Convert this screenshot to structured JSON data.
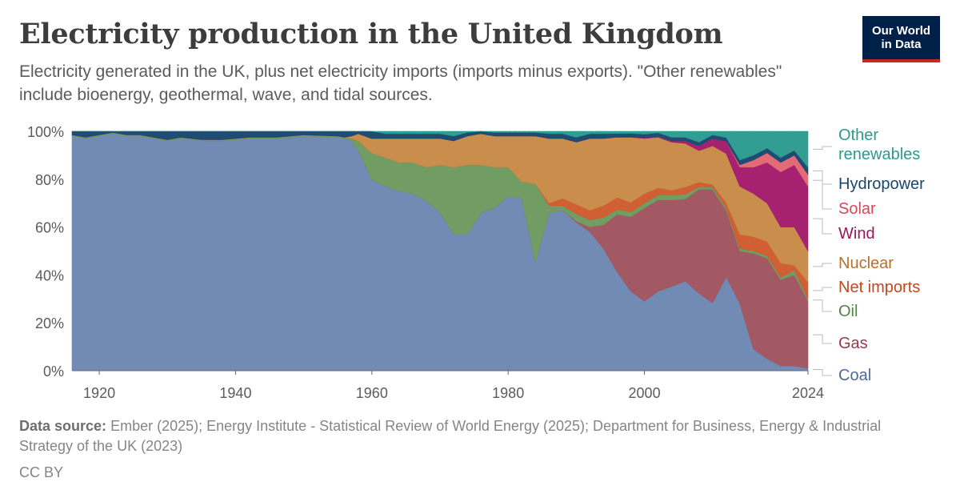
{
  "title": "Electricity production in the United Kingdom",
  "subtitle": "Electricity generated in the UK, plus net electricity imports (imports minus exports). \"Other renewables\" include bioenergy, geothermal, wave, and tidal sources.",
  "logo": {
    "line1": "Our World",
    "line2": "in Data"
  },
  "footer": {
    "source_label": "Data source:",
    "source_text": "Ember (2025); Energy Institute - Statistical Review of World Energy (2025); Department for Business, Energy & Industrial Strategy of the UK (2023)",
    "license": "CC BY"
  },
  "chart_data": {
    "type": "area",
    "stacked": true,
    "normalized": true,
    "xlim": [
      1916,
      2024
    ],
    "ylim": [
      0,
      100
    ],
    "x_ticks": [
      1920,
      1940,
      1960,
      1980,
      2000,
      2024
    ],
    "y_ticks": [
      0,
      20,
      40,
      60,
      80,
      100
    ],
    "y_tick_labels": [
      "0%",
      "20%",
      "40%",
      "60%",
      "80%",
      "100%"
    ],
    "grid": "horizontal dashed",
    "legend_placement": "right",
    "x": [
      1916,
      1918,
      1920,
      1922,
      1924,
      1926,
      1928,
      1930,
      1932,
      1935,
      1938,
      1942,
      1946,
      1950,
      1955,
      1956,
      1957,
      1958,
      1960,
      1962,
      1964,
      1966,
      1968,
      1970,
      1972,
      1974,
      1976,
      1978,
      1980,
      1982,
      1984,
      1986,
      1988,
      1990,
      1992,
      1994,
      1996,
      1998,
      2000,
      2002,
      2004,
      2006,
      2008,
      2010,
      2012,
      2014,
      2016,
      2018,
      2020,
      2022,
      2024
    ],
    "series": [
      {
        "name": "Coal",
        "color": "#6d87b2",
        "values": [
          98,
          97,
          98,
          99,
          98,
          98,
          97,
          96,
          97,
          96,
          96,
          97,
          97,
          98,
          97.5,
          97,
          96,
          92,
          79,
          77,
          75,
          74,
          71,
          66,
          57,
          57,
          66,
          68,
          73,
          72,
          45,
          66,
          67,
          62,
          58,
          51,
          41,
          33,
          29,
          33,
          35,
          37,
          32,
          28,
          38,
          28,
          9,
          5,
          2,
          2,
          1
        ]
      },
      {
        "name": "Gas",
        "color": "#a0545f",
        "values": [
          0,
          0,
          0,
          0,
          0,
          0,
          0,
          0,
          0,
          0,
          0,
          0,
          0,
          0,
          0,
          0,
          0,
          0,
          0,
          0,
          0,
          0,
          0,
          0,
          0,
          0,
          0,
          0,
          0,
          0,
          0,
          0,
          0,
          0.5,
          2,
          10,
          24,
          31,
          39,
          38,
          36,
          34,
          43,
          47,
          27,
          22,
          40,
          42,
          36,
          38,
          28
        ]
      },
      {
        "name": "Oil",
        "color": "#6c9a5f",
        "values": [
          0.5,
          0.5,
          0.5,
          0.5,
          0.5,
          0.5,
          0.5,
          0.5,
          0.5,
          0.5,
          0.5,
          0.5,
          0.5,
          0.5,
          0.5,
          0.5,
          1,
          4,
          11,
          12,
          12,
          13,
          14,
          20,
          28,
          29,
          20,
          17,
          12,
          7,
          33,
          3,
          2,
          3,
          3,
          3,
          2,
          2,
          2,
          2,
          2,
          2,
          1,
          1,
          1,
          1,
          1,
          1,
          1,
          2,
          1
        ]
      },
      {
        "name": "Net imports",
        "color": "#ce5a2c",
        "values": [
          0,
          0,
          0,
          0,
          0,
          0,
          0,
          0,
          0,
          0,
          0,
          0,
          0,
          0,
          0,
          0,
          0,
          0,
          0,
          0,
          0,
          0,
          0,
          0,
          0,
          0,
          0,
          0,
          0,
          0,
          0,
          1,
          3,
          4,
          4,
          5,
          5,
          4,
          4,
          3,
          2,
          3,
          2,
          1,
          2,
          6,
          6,
          6,
          6,
          2,
          7
        ]
      },
      {
        "name": "Nuclear",
        "color": "#c78a46",
        "values": [
          0,
          0,
          0,
          0,
          0,
          0,
          0,
          0,
          0,
          0,
          0,
          0,
          0,
          0,
          0,
          0,
          1,
          3,
          6,
          8,
          10,
          10,
          12,
          11,
          11,
          12,
          13,
          13,
          13,
          19,
          20,
          27,
          25,
          26,
          30,
          28,
          25,
          27,
          23,
          21,
          20,
          18,
          13,
          16,
          20,
          20,
          18,
          16,
          15,
          16,
          13
        ]
      },
      {
        "name": "Wind",
        "color": "#a31a6b",
        "values": [
          0,
          0,
          0,
          0,
          0,
          0,
          0,
          0,
          0,
          0,
          0,
          0,
          0,
          0,
          0,
          0,
          0,
          0,
          0,
          0,
          0,
          0,
          0,
          0,
          0,
          0,
          0,
          0,
          0,
          0,
          0,
          0,
          0,
          0,
          0,
          0,
          0.1,
          0.2,
          0.3,
          0.4,
          0.5,
          1,
          2,
          3,
          5,
          8,
          11,
          17,
          23,
          26,
          27
        ]
      },
      {
        "name": "Solar",
        "color": "#e26674",
        "values": [
          0,
          0,
          0,
          0,
          0,
          0,
          0,
          0,
          0,
          0,
          0,
          0,
          0,
          0,
          0,
          0,
          0,
          0,
          0,
          0,
          0,
          0,
          0,
          0,
          0,
          0,
          0,
          0,
          0,
          0,
          0,
          0,
          0,
          0,
          0,
          0,
          0,
          0,
          0,
          0,
          0,
          0,
          0,
          0,
          0,
          1,
          3,
          4,
          4,
          4,
          5
        ]
      },
      {
        "name": "Hydropower",
        "color": "#18466e",
        "values": [
          1.5,
          2.5,
          1.5,
          0.5,
          1.5,
          1.5,
          2.5,
          3.5,
          2.5,
          3.5,
          3.5,
          2.5,
          2.5,
          1.5,
          2,
          2.5,
          2,
          1,
          3,
          2,
          2,
          2,
          2,
          2,
          2,
          1.5,
          1,
          1.5,
          1.5,
          1.5,
          1.5,
          2,
          2,
          2,
          2,
          2,
          1.5,
          1.5,
          1.5,
          1.5,
          1.5,
          1.5,
          1.5,
          1.5,
          1.5,
          2,
          2,
          2,
          2,
          2,
          3
        ]
      },
      {
        "name": "Other renewables",
        "color": "#2a9a90",
        "values": [
          0,
          0,
          0,
          0,
          0,
          0,
          0,
          0,
          0,
          0,
          0,
          0,
          0,
          0,
          0,
          0,
          0,
          0,
          0,
          1,
          1,
          1,
          1,
          1,
          2,
          0.5,
          0,
          0.5,
          0.5,
          0.5,
          0.5,
          1,
          1,
          2.5,
          1,
          1,
          0.9,
          0.8,
          1.2,
          0.6,
          2.5,
          2.5,
          4.5,
          1.5,
          2.5,
          12,
          10,
          7,
          11,
          8,
          15
        ]
      }
    ],
    "legend": [
      {
        "label": "Other renewables",
        "lines": [
          "Other",
          "renewables"
        ],
        "color": "#2a9a90"
      },
      {
        "label": "Hydropower",
        "lines": [
          "Hydropower"
        ],
        "color": "#18466e"
      },
      {
        "label": "Solar",
        "lines": [
          "Solar"
        ],
        "color": "#d7475a"
      },
      {
        "label": "Wind",
        "lines": [
          "Wind"
        ],
        "color": "#93195f"
      },
      {
        "label": "Nuclear",
        "lines": [
          "Nuclear"
        ],
        "color": "#b8702d"
      },
      {
        "label": "Net imports",
        "lines": [
          "Net imports"
        ],
        "color": "#c4461c"
      },
      {
        "label": "Oil",
        "lines": [
          "Oil"
        ],
        "color": "#50863f"
      },
      {
        "label": "Gas",
        "lines": [
          "Gas"
        ],
        "color": "#943c4a"
      },
      {
        "label": "Coal",
        "lines": [
          "Coal"
        ],
        "color": "#4c6a9c"
      }
    ]
  }
}
